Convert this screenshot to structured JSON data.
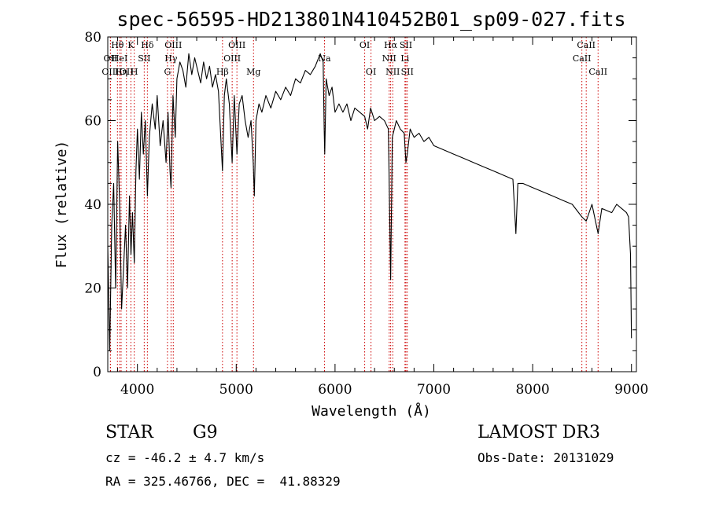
{
  "chart_data": {
    "type": "line",
    "title": "spec-56595-HD213801N410452B01_sp09-027.fits",
    "xlabel": "Wavelength (Å)",
    "ylabel": "Flux (relative)",
    "xlim": [
      3700,
      9050
    ],
    "ylim": [
      0,
      80
    ],
    "xticks": [
      4000,
      5000,
      6000,
      7000,
      8000,
      9000
    ],
    "yticks": [
      0,
      20,
      40,
      60,
      80
    ],
    "grid": false,
    "line_color": "#000000",
    "marker_color": "#cc0000",
    "series": [
      {
        "x": [
          3700,
          3720,
          3740,
          3760,
          3780,
          3800,
          3820,
          3840,
          3860,
          3880,
          3900,
          3920,
          3935,
          3950,
          3968,
          3985,
          4000,
          4020,
          4040,
          4060,
          4080,
          4101,
          4120,
          4150,
          4180,
          4200,
          4230,
          4260,
          4290,
          4310,
          4330,
          4340,
          4360,
          4383,
          4400,
          4430,
          4460,
          4490,
          4520,
          4550,
          4580,
          4610,
          4640,
          4670,
          4700,
          4730,
          4760,
          4790,
          4820,
          4861,
          4880,
          4900,
          4930,
          4959,
          4980,
          5007,
          5030,
          5060,
          5090,
          5120,
          5150,
          5172,
          5183,
          5200,
          5230,
          5260,
          5300,
          5350,
          5400,
          5450,
          5500,
          5550,
          5600,
          5650,
          5700,
          5750,
          5800,
          5850,
          5880,
          5890,
          5896,
          5910,
          5940,
          5970,
          6000,
          6040,
          6080,
          6120,
          6160,
          6200,
          6250,
          6300,
          6330,
          6360,
          6400,
          6450,
          6500,
          6540,
          6563,
          6580,
          6620,
          6660,
          6700,
          6717,
          6731,
          6760,
          6800,
          6850,
          6900,
          6950,
          7000,
          7100,
          7200,
          7300,
          7400,
          7500,
          7600,
          7700,
          7800,
          7830,
          7850,
          7900,
          8000,
          8100,
          8200,
          8300,
          8400,
          8498,
          8542,
          8600,
          8662,
          8700,
          8800,
          8850,
          8900,
          8950,
          8970,
          8990,
          9000
        ],
        "y": [
          30,
          5,
          35,
          45,
          20,
          55,
          40,
          15,
          25,
          35,
          20,
          42,
          28,
          38,
          26,
          48,
          58,
          46,
          62,
          52,
          60,
          42,
          56,
          64,
          58,
          66,
          54,
          60,
          50,
          62,
          48,
          44,
          66,
          56,
          70,
          74,
          72,
          68,
          76,
          71,
          75,
          72,
          69,
          74,
          70,
          73,
          68,
          71,
          67,
          48,
          66,
          70,
          64,
          50,
          66,
          52,
          64,
          66,
          60,
          56,
          60,
          50,
          42,
          60,
          64,
          62,
          66,
          63,
          67,
          65,
          68,
          66,
          70,
          69,
          72,
          71,
          73,
          76,
          74,
          58,
          52,
          70,
          66,
          68,
          62,
          64,
          62,
          64,
          60,
          63,
          62,
          61,
          58,
          63,
          60,
          61,
          60,
          58,
          22,
          56,
          60,
          58,
          57,
          50,
          52,
          58,
          56,
          57,
          55,
          56,
          54,
          53,
          52,
          51,
          50,
          49,
          48,
          47,
          46,
          33,
          45,
          45,
          44,
          43,
          42,
          41,
          40,
          37,
          36,
          40,
          33,
          39,
          38,
          40,
          39,
          38,
          37,
          28,
          8
        ]
      }
    ],
    "lines": [
      {
        "label": "Hθ",
        "x": 3798,
        "row": 0
      },
      {
        "label": "K",
        "x": 3934,
        "row": 0
      },
      {
        "label": "Hδ",
        "x": 4101,
        "row": 0
      },
      {
        "label": "OII",
        "x": 3727,
        "row": 1
      },
      {
        "label": "HeI",
        "x": 3820,
        "row": 1
      },
      {
        "label": "SII",
        "x": 4069,
        "row": 1
      },
      {
        "label": "OIII",
        "x": 3727,
        "row": 2
      },
      {
        "label": "Hη",
        "x": 3835,
        "row": 2
      },
      {
        "label": "H",
        "x": 3968,
        "row": 2
      },
      {
        "label": "OII",
        "x": 3889,
        "row": 2
      },
      {
        "label": "OIII",
        "x": 4363,
        "row": 0
      },
      {
        "label": "Hγ",
        "x": 4340,
        "row": 1
      },
      {
        "label": "G",
        "x": 4304,
        "row": 2
      },
      {
        "label": "OIII",
        "x": 5007,
        "row": 0
      },
      {
        "label": "OIII",
        "x": 4959,
        "row": 1
      },
      {
        "label": "Hβ",
        "x": 4861,
        "row": 2
      },
      {
        "label": "Mg",
        "x": 5175,
        "row": 2
      },
      {
        "label": "Na",
        "x": 5893,
        "row": 1
      },
      {
        "label": "OI",
        "x": 6300,
        "row": 0
      },
      {
        "label": "OI",
        "x": 6364,
        "row": 2
      },
      {
        "label": "Hα",
        "x": 6563,
        "row": 0
      },
      {
        "label": "SII",
        "x": 6717,
        "row": 0
      },
      {
        "label": "NII",
        "x": 6548,
        "row": 1
      },
      {
        "label": "Li",
        "x": 6708,
        "row": 1
      },
      {
        "label": "NII",
        "x": 6584,
        "row": 2
      },
      {
        "label": "SII",
        "x": 6731,
        "row": 2
      },
      {
        "label": "CaII",
        "x": 8542,
        "row": 0
      },
      {
        "label": "CaII",
        "x": 8498,
        "row": 1
      },
      {
        "label": "CaII",
        "x": 8662,
        "row": 2
      }
    ]
  },
  "info": {
    "object_class": "STAR",
    "subclass": "G9",
    "survey": "LAMOST DR3",
    "redshift": "cz = -46.2 ± 4.7 km/s",
    "obs_date": "Obs-Date: 20131029",
    "coords": "RA = 325.46766, DEC =  41.88329"
  }
}
